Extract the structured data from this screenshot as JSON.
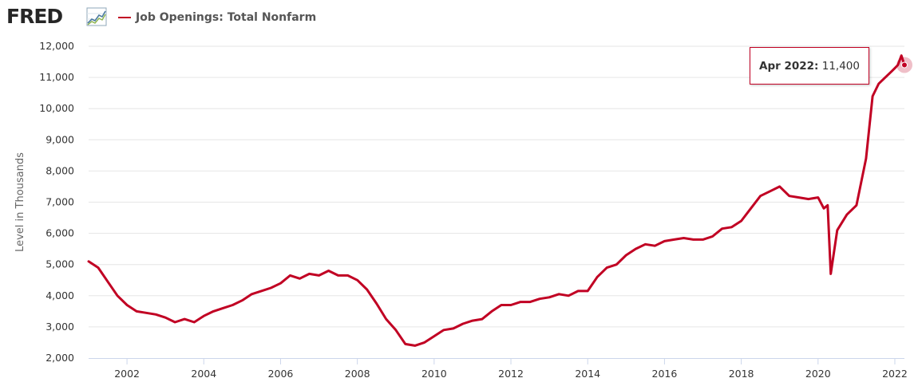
{
  "header": {
    "logo_text": "FRED",
    "logo_icon": "fred-line-chart-icon",
    "series_title": "Job Openings: Total Nonfarm"
  },
  "tooltip": {
    "date": "Apr 2022:",
    "value": "11,400"
  },
  "colors": {
    "series": "#c10023",
    "grid": "#e6e6e6",
    "axis_text": "#333333",
    "logo": "#262626"
  },
  "chart_data": {
    "type": "line",
    "title": "",
    "xlabel": "",
    "ylabel": "Level in Thousands",
    "ylim": [
      2000,
      12000
    ],
    "xlim": [
      2001.0,
      2022.25
    ],
    "grid": true,
    "legend_position": "top-left",
    "y_ticks": [
      "2,000",
      "3,000",
      "4,000",
      "5,000",
      "6,000",
      "7,000",
      "8,000",
      "9,000",
      "10,000",
      "11,000",
      "12,000"
    ],
    "x_ticks": [
      "2002",
      "2004",
      "2006",
      "2008",
      "2010",
      "2012",
      "2014",
      "2016",
      "2018",
      "2020",
      "2022"
    ],
    "series": [
      {
        "name": "Job Openings: Total Nonfarm",
        "x": [
          2001.0,
          2001.25,
          2001.5,
          2001.75,
          2002.0,
          2002.25,
          2002.5,
          2002.75,
          2003.0,
          2003.25,
          2003.5,
          2003.75,
          2004.0,
          2004.25,
          2004.5,
          2004.75,
          2005.0,
          2005.25,
          2005.5,
          2005.75,
          2006.0,
          2006.25,
          2006.5,
          2006.75,
          2007.0,
          2007.25,
          2007.5,
          2007.75,
          2008.0,
          2008.25,
          2008.5,
          2008.75,
          2009.0,
          2009.25,
          2009.5,
          2009.75,
          2010.0,
          2010.25,
          2010.5,
          2010.75,
          2011.0,
          2011.25,
          2011.5,
          2011.75,
          2012.0,
          2012.25,
          2012.5,
          2012.75,
          2013.0,
          2013.25,
          2013.5,
          2013.75,
          2014.0,
          2014.25,
          2014.5,
          2014.75,
          2015.0,
          2015.25,
          2015.5,
          2015.75,
          2016.0,
          2016.25,
          2016.5,
          2016.75,
          2017.0,
          2017.25,
          2017.5,
          2017.75,
          2018.0,
          2018.25,
          2018.5,
          2018.75,
          2019.0,
          2019.25,
          2019.5,
          2019.75,
          2020.0,
          2020.15,
          2020.25,
          2020.33,
          2020.5,
          2020.75,
          2021.0,
          2021.25,
          2021.42,
          2021.58,
          2021.75,
          2021.92,
          2022.0,
          2022.08,
          2022.17,
          2022.25
        ],
        "values": [
          5100,
          4900,
          4450,
          4000,
          3700,
          3500,
          3450,
          3400,
          3300,
          3150,
          3250,
          3150,
          3350,
          3500,
          3600,
          3700,
          3850,
          4050,
          4150,
          4250,
          4400,
          4650,
          4550,
          4700,
          4650,
          4800,
          4650,
          4650,
          4500,
          4200,
          3750,
          3250,
          2900,
          2450,
          2400,
          2500,
          2700,
          2900,
          2950,
          3100,
          3200,
          3250,
          3500,
          3700,
          3700,
          3800,
          3800,
          3900,
          3950,
          4050,
          4000,
          4150,
          4150,
          4600,
          4900,
          5000,
          5300,
          5500,
          5650,
          5600,
          5750,
          5800,
          5850,
          5800,
          5800,
          5900,
          6150,
          6200,
          6400,
          6800,
          7200,
          7350,
          7500,
          7200,
          7150,
          7100,
          7150,
          6800,
          6900,
          4700,
          6100,
          6600,
          6900,
          8400,
          10400,
          10800,
          11000,
          11200,
          11300,
          11400,
          11700,
          11400
        ]
      }
    ]
  }
}
